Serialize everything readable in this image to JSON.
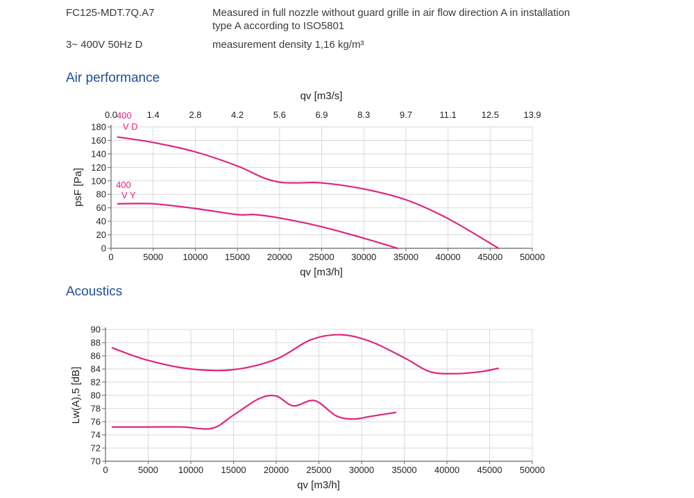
{
  "header": {
    "model": "FC125-MDT.7Q.A7",
    "description_line1": "Measured in full nozzle without guard grille in air flow direction A in installation",
    "description_line2": "type A according to ISO5801",
    "supply": "3~ 400V 50Hz D",
    "density": "measurement density 1,16 kg/m³"
  },
  "sections": {
    "air_title": "Air performance",
    "acoustics_title": "Acoustics"
  },
  "colors": {
    "curve": "#e0237f",
    "grid": "#d9d9d9",
    "axis": "#666666"
  },
  "chart_data": [
    {
      "type": "line",
      "xlabel": "qv [m3/h]",
      "ylabel": "psF [Pa]",
      "x2label": "qv [m3/s]",
      "xlim": [
        0,
        50000
      ],
      "ylim": [
        0,
        180
      ],
      "grid": true,
      "x_ticks": [
        "0",
        "5000",
        "10000",
        "15000",
        "20000",
        "25000",
        "30000",
        "35000",
        "40000",
        "45000",
        "50000"
      ],
      "x2_ticks": [
        "0.0",
        "1.4",
        "2.8",
        "4.2",
        "5.6",
        "6.9",
        "8.3",
        "9.7",
        "11.1",
        "12.5",
        "13.9"
      ],
      "y_ticks": [
        "0",
        "20",
        "40",
        "60",
        "80",
        "100",
        "120",
        "140",
        "160",
        "180"
      ],
      "series": [
        {
          "label_line1": "400",
          "label_line2": "V D",
          "x": [
            800,
            5000,
            10000,
            15000,
            18000,
            20000,
            22000,
            25000,
            30000,
            35000,
            40000,
            46000
          ],
          "y": [
            165,
            157,
            143,
            122,
            105,
            98,
            97,
            97,
            88,
            72,
            44,
            0
          ]
        },
        {
          "label_line1": "400",
          "label_line2": "V Y",
          "x": [
            800,
            5000,
            10000,
            15000,
            17000,
            20000,
            25000,
            30000,
            34000
          ],
          "y": [
            66,
            66,
            59,
            50,
            50,
            45,
            32,
            15,
            0
          ]
        }
      ]
    },
    {
      "type": "line",
      "xlabel": "qv [m3/h]",
      "ylabel": "Lw(A),5 [dB]",
      "xlim": [
        0,
        50000
      ],
      "ylim": [
        70,
        90
      ],
      "grid": true,
      "x_ticks": [
        "0",
        "5000",
        "10000",
        "15000",
        "20000",
        "25000",
        "30000",
        "35000",
        "40000",
        "45000",
        "50000"
      ],
      "y_ticks": [
        "70",
        "72",
        "74",
        "76",
        "78",
        "80",
        "82",
        "84",
        "86",
        "88",
        "90"
      ],
      "series": [
        {
          "x": [
            800,
            5000,
            10000,
            15000,
            20000,
            24000,
            27500,
            31000,
            35000,
            38000,
            41000,
            44000,
            46000
          ],
          "y": [
            87.2,
            85.3,
            84.0,
            83.9,
            85.5,
            88.4,
            89.2,
            88.2,
            85.7,
            83.6,
            83.3,
            83.6,
            84.1
          ]
        },
        {
          "x": [
            800,
            5000,
            9000,
            12500,
            15000,
            18000,
            20000,
            22000,
            24500,
            27000,
            29000,
            31000,
            34000
          ],
          "y": [
            75.2,
            75.2,
            75.2,
            75.0,
            77.0,
            79.5,
            79.9,
            78.4,
            79.2,
            76.9,
            76.4,
            76.8,
            77.4
          ]
        }
      ]
    }
  ]
}
